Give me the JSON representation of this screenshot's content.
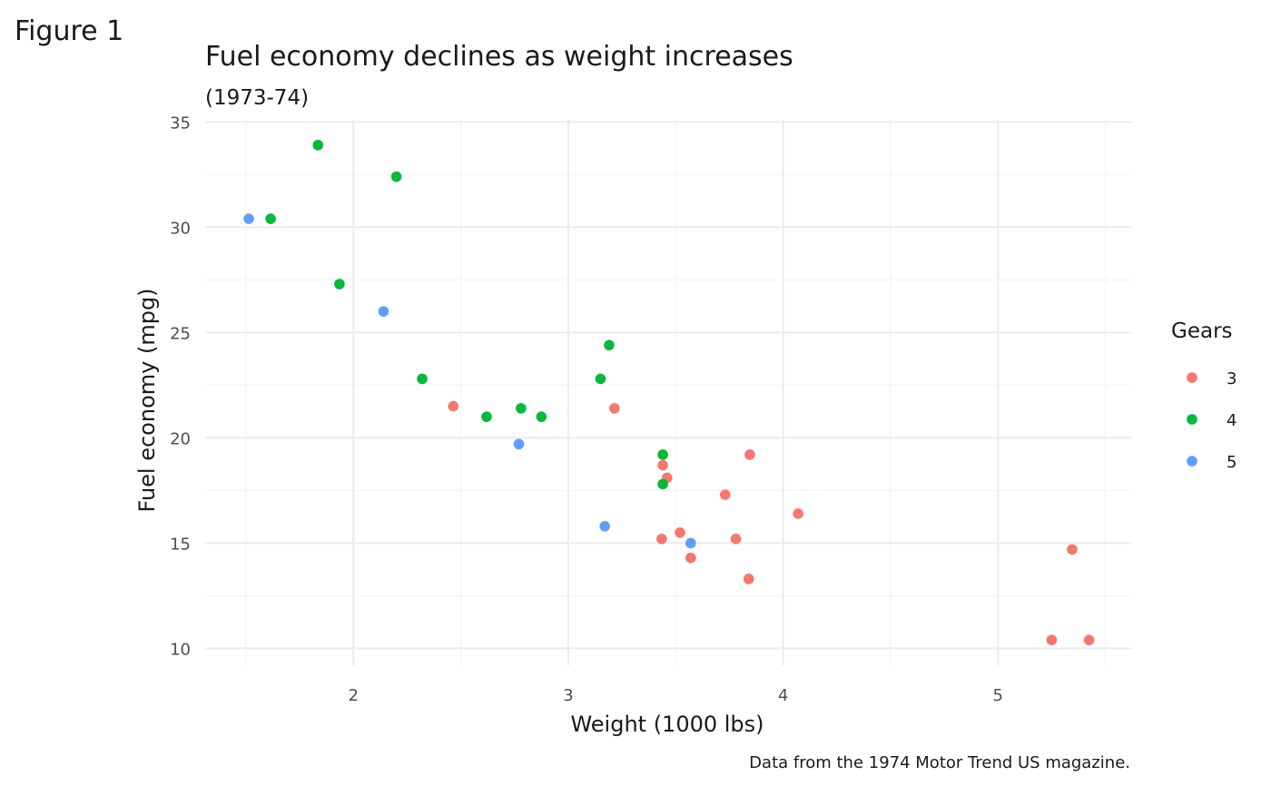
{
  "figure_label": "Figure 1",
  "chart_data": {
    "type": "scatter",
    "title": "Fuel economy declines as weight increases",
    "subtitle": "(1973-74)",
    "xlabel": "Weight (1000 lbs)",
    "ylabel": "Fuel economy (mpg)",
    "caption": "Data from the 1974 Motor Trend US magazine.",
    "xlim": [
      1.31,
      5.62
    ],
    "ylim": [
      9.2,
      35.1
    ],
    "x_ticks": [
      2,
      3,
      4,
      5
    ],
    "x_tick_labels": [
      "2",
      "3",
      "4",
      "5"
    ],
    "y_ticks": [
      10,
      15,
      20,
      25,
      30,
      35
    ],
    "y_tick_labels": [
      "10",
      "15",
      "20",
      "25",
      "30",
      "35"
    ],
    "grid": true,
    "legend": {
      "title": "Gears",
      "placement": "right",
      "entries": [
        "3",
        "4",
        "5"
      ]
    },
    "series": [
      {
        "name": "3",
        "color": "#F8766D",
        "points": [
          [
            2.465,
            21.5
          ],
          [
            3.215,
            21.4
          ],
          [
            3.44,
            18.7
          ],
          [
            3.46,
            18.1
          ],
          [
            3.57,
            14.3
          ],
          [
            4.07,
            16.4
          ],
          [
            3.73,
            17.3
          ],
          [
            3.78,
            15.2
          ],
          [
            5.25,
            10.4
          ],
          [
            5.424,
            10.4
          ],
          [
            5.345,
            14.7
          ],
          [
            3.52,
            15.5
          ],
          [
            3.435,
            15.2
          ],
          [
            3.84,
            13.3
          ],
          [
            3.845,
            19.2
          ]
        ]
      },
      {
        "name": "4",
        "color": "#00BA38",
        "points": [
          [
            2.62,
            21.0
          ],
          [
            2.875,
            21.0
          ],
          [
            2.32,
            22.8
          ],
          [
            3.19,
            24.4
          ],
          [
            3.15,
            22.8
          ],
          [
            3.44,
            19.2
          ],
          [
            3.44,
            17.8
          ],
          [
            2.2,
            32.4
          ],
          [
            1.615,
            30.4
          ],
          [
            1.835,
            33.9
          ],
          [
            1.935,
            27.3
          ],
          [
            2.78,
            21.4
          ]
        ]
      },
      {
        "name": "5",
        "color": "#619CFF",
        "points": [
          [
            2.14,
            26.0
          ],
          [
            1.513,
            30.4
          ],
          [
            3.17,
            15.8
          ],
          [
            2.77,
            19.7
          ],
          [
            3.57,
            15.0
          ]
        ]
      }
    ]
  }
}
